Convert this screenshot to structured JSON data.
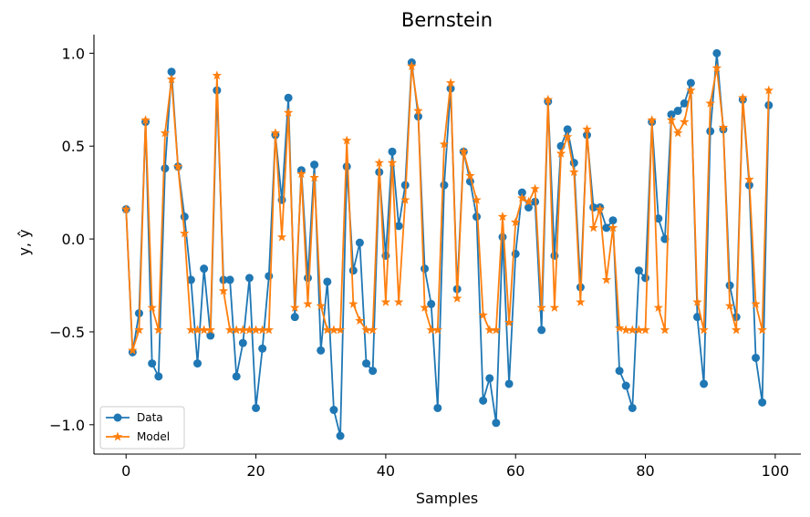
{
  "chart_data": {
    "type": "line",
    "title": "Bernstein",
    "xlabel": "Samples",
    "ylabel": "y, ŷ",
    "xlim": [
      -4.95,
      103.95
    ],
    "ylim": [
      -1.158,
      1.1
    ],
    "xticks": [
      0,
      20,
      40,
      60,
      80,
      100
    ],
    "yticks": [
      -1.0,
      -0.5,
      0.0,
      0.5,
      1.0
    ],
    "ytick_labels": [
      "−1.0",
      "−0.5",
      "0.0",
      "0.5",
      "1.0"
    ],
    "grid": false,
    "legend_position": "lower-left",
    "series": [
      {
        "name": "Data",
        "color": "#1f77b4",
        "marker": "circle",
        "values": [
          0.16,
          -0.61,
          -0.4,
          0.63,
          -0.67,
          -0.74,
          0.38,
          0.9,
          0.39,
          0.12,
          -0.22,
          -0.67,
          -0.16,
          -0.52,
          0.8,
          -0.22,
          -0.22,
          -0.74,
          -0.56,
          -0.21,
          -0.91,
          -0.59,
          -0.2,
          0.56,
          0.21,
          0.76,
          -0.42,
          0.37,
          -0.21,
          0.4,
          -0.6,
          -0.23,
          -0.92,
          -1.06,
          0.39,
          -0.17,
          -0.02,
          -0.67,
          -0.71,
          0.36,
          -0.09,
          0.47,
          0.07,
          0.29,
          0.95,
          0.66,
          -0.16,
          -0.35,
          -0.91,
          0.29,
          0.81,
          -0.27,
          0.47,
          0.31,
          0.12,
          -0.87,
          -0.75,
          -0.99,
          0.01,
          -0.78,
          -0.08,
          0.25,
          0.17,
          0.2,
          -0.49,
          0.74,
          -0.09,
          0.5,
          0.59,
          0.41,
          -0.26,
          0.56,
          0.17,
          0.17,
          0.06,
          0.1,
          -0.71,
          -0.79,
          -0.91,
          -0.17,
          -0.21,
          0.63,
          0.11,
          0.0,
          0.67,
          0.69,
          0.73,
          0.84,
          -0.42,
          -0.78,
          0.58,
          1.0,
          0.59,
          -0.25,
          -0.42,
          0.75,
          0.29,
          -0.64,
          -0.88,
          0.72
        ]
      },
      {
        "name": "Model",
        "color": "#ff7f0e",
        "marker": "star",
        "values": [
          0.16,
          -0.6,
          -0.49,
          0.64,
          -0.37,
          -0.49,
          0.57,
          0.86,
          0.39,
          0.03,
          -0.49,
          -0.49,
          -0.49,
          -0.49,
          0.88,
          -0.28,
          -0.49,
          -0.49,
          -0.49,
          -0.49,
          -0.49,
          -0.49,
          -0.49,
          0.57,
          0.01,
          0.68,
          -0.37,
          0.35,
          -0.35,
          0.33,
          -0.36,
          -0.49,
          -0.49,
          -0.49,
          0.53,
          -0.35,
          -0.44,
          -0.49,
          -0.49,
          0.41,
          -0.34,
          0.41,
          -0.34,
          0.21,
          0.93,
          0.69,
          -0.37,
          -0.49,
          -0.49,
          0.51,
          0.84,
          -0.32,
          0.47,
          0.34,
          0.21,
          -0.41,
          -0.49,
          -0.49,
          0.12,
          -0.45,
          0.09,
          0.22,
          0.2,
          0.27,
          -0.37,
          0.75,
          -0.37,
          0.46,
          0.55,
          0.36,
          -0.34,
          0.59,
          0.06,
          0.16,
          -0.22,
          0.06,
          -0.48,
          -0.49,
          -0.49,
          -0.49,
          -0.49,
          0.64,
          -0.37,
          -0.49,
          0.64,
          0.57,
          0.63,
          0.8,
          -0.34,
          -0.49,
          0.73,
          0.92,
          0.6,
          -0.36,
          -0.49,
          0.76,
          0.32,
          -0.35,
          -0.49,
          0.8
        ]
      }
    ]
  }
}
